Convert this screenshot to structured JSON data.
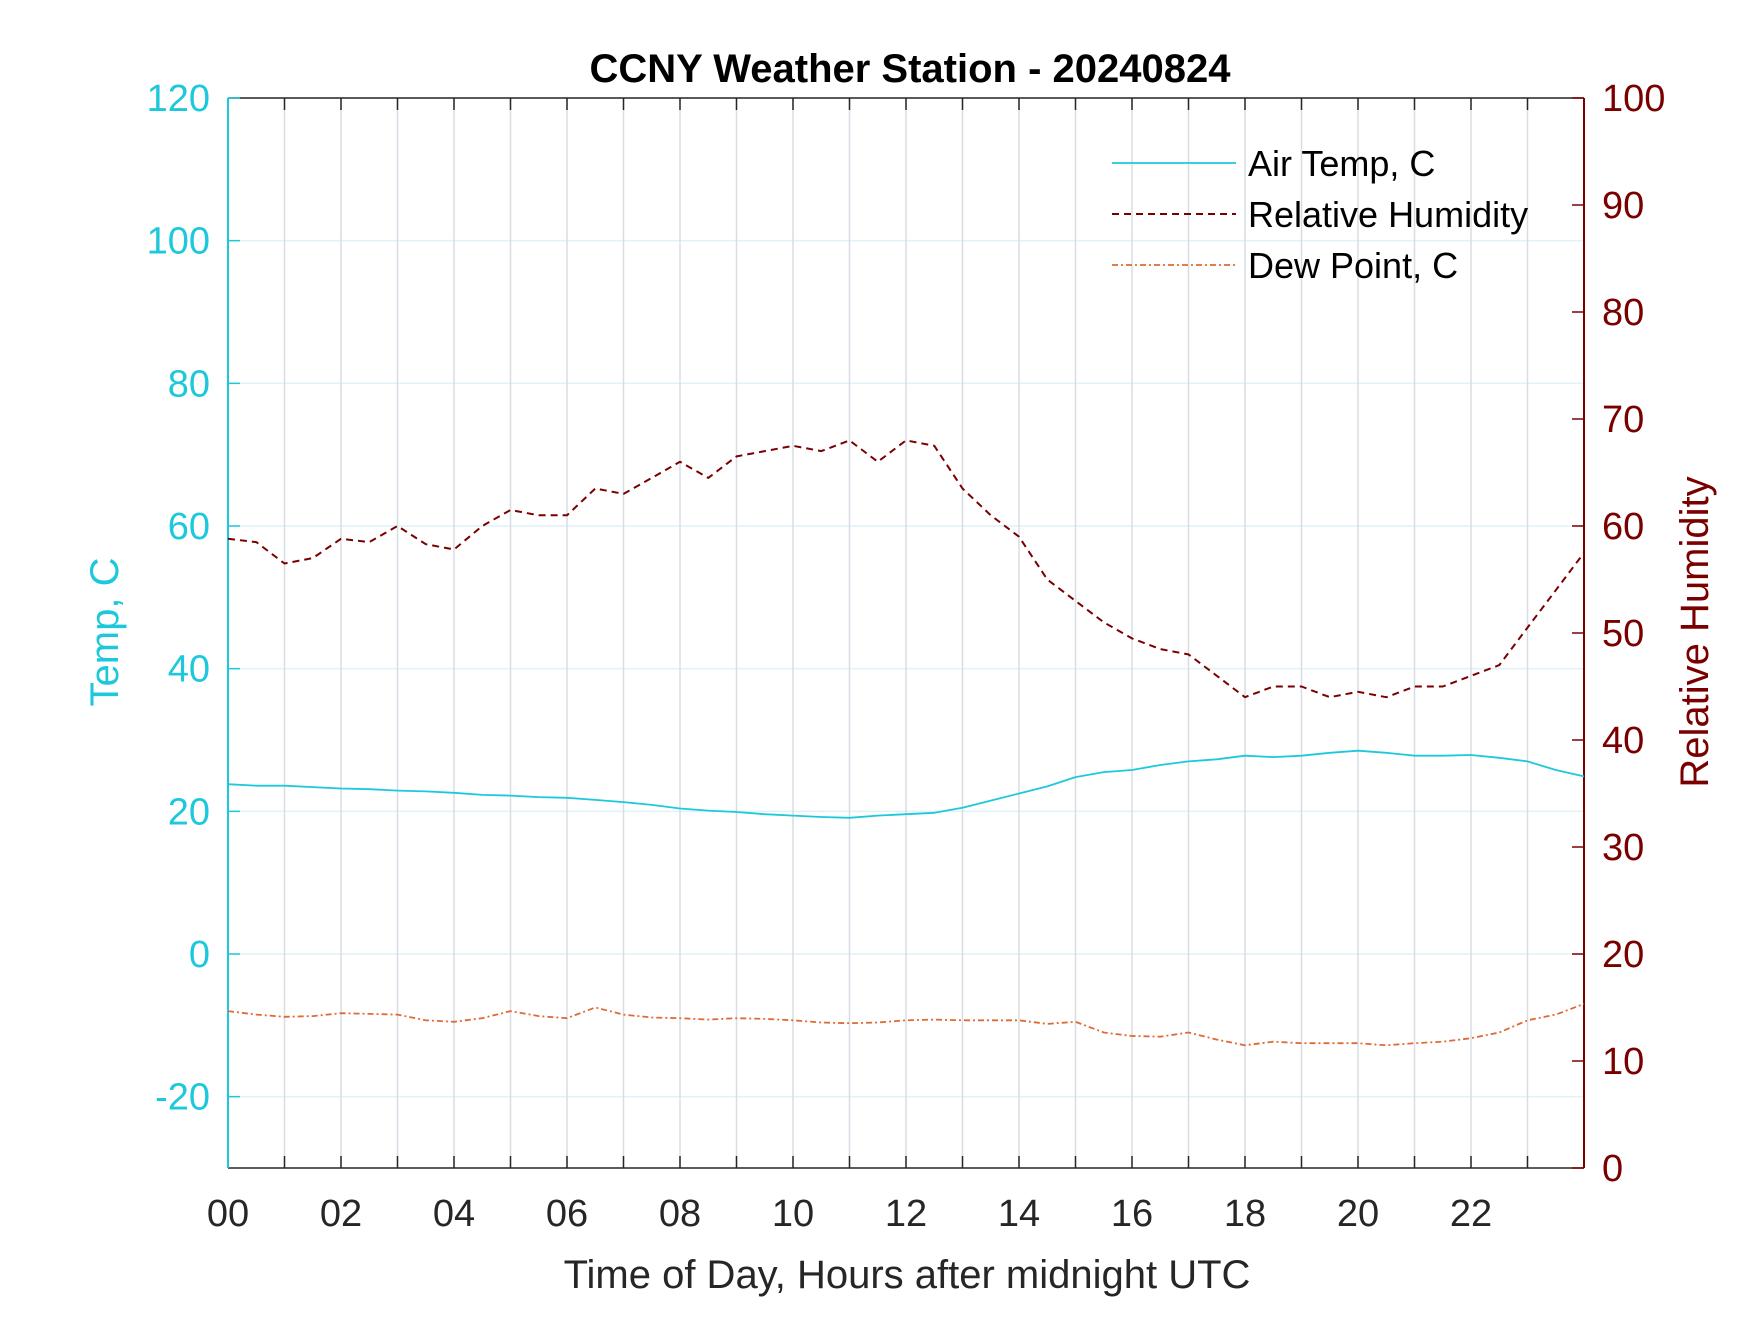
{
  "chart_data": {
    "type": "line",
    "title": "CCNY Weather Station - 20240824",
    "xlabel": "Time of Day, Hours after midnight UTC",
    "ylabel_left": "Temp, C",
    "ylabel_right": "Relative Humidity",
    "xlim": [
      0,
      24
    ],
    "ylim_left": [
      -30,
      120
    ],
    "ylim_right": [
      0,
      100
    ],
    "x_ticks": [
      "00",
      "02",
      "04",
      "06",
      "08",
      "10",
      "12",
      "14",
      "16",
      "18",
      "20",
      "22"
    ],
    "y_ticks_left": [
      "-20",
      "0",
      "20",
      "40",
      "60",
      "80",
      "100",
      "120"
    ],
    "y_ticks_right": [
      "0",
      "10",
      "20",
      "30",
      "40",
      "50",
      "60",
      "70",
      "80",
      "90",
      "100"
    ],
    "grid": true,
    "legend_position": "top-right",
    "colors": {
      "left_axis": "#1ec8dc",
      "right_axis": "#7a0000",
      "air_temp": "#1ec8dc",
      "humidity": "#7a0000",
      "dew_point": "#e06a35",
      "grid_x": "#d6dde4",
      "grid_y": "#dff2f7"
    },
    "series": [
      {
        "name": "Air Temp, C",
        "axis": "left",
        "style": "solid",
        "x": [
          0,
          0.5,
          1,
          1.5,
          2,
          2.5,
          3,
          3.5,
          4,
          4.5,
          5,
          5.5,
          6,
          6.5,
          7,
          7.5,
          8,
          8.5,
          9,
          9.5,
          10,
          10.5,
          11,
          11.5,
          12,
          12.5,
          13,
          13.5,
          14,
          14.5,
          15,
          15.5,
          16,
          16.5,
          17,
          17.5,
          18,
          18.5,
          19,
          19.5,
          20,
          20.5,
          21,
          21.5,
          22,
          22.5,
          23,
          23.5,
          24
        ],
        "values": [
          23.8,
          23.6,
          23.6,
          23.4,
          23.2,
          23.1,
          22.9,
          22.8,
          22.6,
          22.3,
          22.2,
          22.0,
          21.9,
          21.6,
          21.3,
          20.9,
          20.4,
          20.1,
          19.9,
          19.6,
          19.4,
          19.2,
          19.1,
          19.4,
          19.6,
          19.8,
          20.5,
          21.5,
          22.5,
          23.5,
          24.8,
          25.5,
          25.8,
          26.5,
          27.0,
          27.3,
          27.8,
          27.6,
          27.8,
          28.2,
          28.5,
          28.2,
          27.8,
          27.8,
          27.9,
          27.5,
          27.0,
          25.8,
          24.9
        ]
      },
      {
        "name": "Relative Humidity",
        "axis": "right",
        "style": "dashed",
        "x": [
          0,
          0.5,
          1,
          1.5,
          2,
          2.5,
          3,
          3.5,
          4,
          4.5,
          5,
          5.5,
          6,
          6.5,
          7,
          7.5,
          8,
          8.5,
          9,
          9.5,
          10,
          10.5,
          11,
          11.5,
          12,
          12.5,
          13,
          13.5,
          14,
          14.5,
          15,
          15.5,
          16,
          16.5,
          17,
          17.5,
          18,
          18.5,
          19,
          19.5,
          20,
          20.5,
          21,
          21.5,
          22,
          22.5,
          23,
          23.5,
          24
        ],
        "values": [
          58.8,
          58.5,
          56.5,
          57.0,
          58.8,
          58.5,
          60.0,
          58.3,
          57.8,
          60.0,
          61.5,
          61.0,
          61.0,
          63.5,
          63.0,
          64.5,
          66.0,
          64.5,
          66.5,
          67.0,
          67.5,
          67.0,
          68.0,
          66.0,
          68.0,
          67.5,
          63.5,
          61.0,
          59.0,
          55.0,
          53.0,
          51.0,
          49.5,
          48.5,
          48.0,
          46.0,
          44.0,
          45.0,
          45.0,
          44.0,
          44.5,
          44.0,
          45.0,
          45.0,
          46.0,
          47.0,
          50.5,
          54.0,
          57.5
        ]
      },
      {
        "name": "Dew Point, C",
        "axis": "left",
        "style": "dashdot",
        "x": [
          0,
          0.5,
          1,
          1.5,
          2,
          2.5,
          3,
          3.5,
          4,
          4.5,
          5,
          5.5,
          6,
          6.5,
          7,
          7.5,
          8,
          8.5,
          9,
          9.5,
          10,
          10.5,
          11,
          11.5,
          12,
          12.5,
          13,
          13.5,
          14,
          14.5,
          15,
          15.5,
          16,
          16.5,
          17,
          17.5,
          18,
          18.5,
          19,
          19.5,
          20,
          20.5,
          21,
          21.5,
          22,
          22.5,
          23,
          23.5,
          24
        ],
        "values": [
          -8.0,
          -8.5,
          -8.8,
          -8.7,
          -8.3,
          -8.4,
          -8.5,
          -9.3,
          -9.5,
          -9.0,
          -8.0,
          -8.7,
          -9.0,
          -7.5,
          -8.5,
          -8.9,
          -9.0,
          -9.2,
          -9.0,
          -9.1,
          -9.3,
          -9.6,
          -9.7,
          -9.6,
          -9.3,
          -9.2,
          -9.3,
          -9.3,
          -9.3,
          -9.8,
          -9.5,
          -11.0,
          -11.5,
          -11.6,
          -11.0,
          -12.0,
          -12.8,
          -12.3,
          -12.5,
          -12.5,
          -12.5,
          -12.8,
          -12.5,
          -12.3,
          -11.8,
          -11.0,
          -9.3,
          -8.5,
          -7.0
        ]
      }
    ]
  }
}
